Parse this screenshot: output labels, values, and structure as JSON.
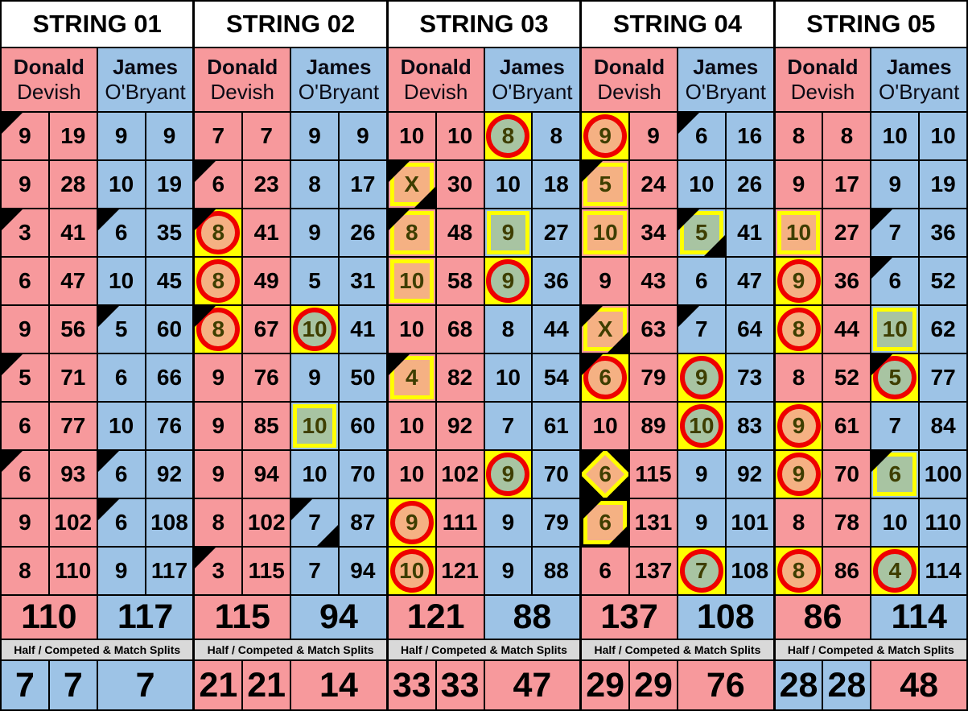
{
  "players": {
    "left": {
      "first": "Donald",
      "last": "Devish"
    },
    "right": {
      "first": "James",
      "last": "O'Bryant"
    }
  },
  "splits_label": "Half / Competed & Match Splits",
  "colors": {
    "pink": "#F7999C",
    "blue": "#9DC3E6",
    "orange": "#F5B183",
    "green": "#A8C4A2",
    "yellow": "#FFFF00",
    "ring_red": "#EE0000",
    "marker_text": "#3E3E00",
    "label_bg": "#D9D9D9"
  },
  "strings": [
    {
      "title": "STRING 01",
      "left_frames": [
        {
          "v": "9",
          "t": "19",
          "tl": true
        },
        {
          "v": "9",
          "t": "28"
        },
        {
          "v": "3",
          "t": "41",
          "tl": true
        },
        {
          "v": "6",
          "t": "47"
        },
        {
          "v": "9",
          "t": "56"
        },
        {
          "v": "5",
          "t": "71",
          "tl": true
        },
        {
          "v": "6",
          "t": "77"
        },
        {
          "v": "6",
          "t": "93",
          "tl": true
        },
        {
          "v": "9",
          "t": "102"
        },
        {
          "v": "8",
          "t": "110"
        }
      ],
      "right_frames": [
        {
          "v": "9",
          "t": "9"
        },
        {
          "v": "10",
          "t": "19"
        },
        {
          "v": "6",
          "t": "35",
          "tl": true
        },
        {
          "v": "10",
          "t": "45"
        },
        {
          "v": "5",
          "t": "60",
          "tl": true
        },
        {
          "v": "6",
          "t": "66"
        },
        {
          "v": "10",
          "t": "76"
        },
        {
          "v": "6",
          "t": "92",
          "tl": true
        },
        {
          "v": "6",
          "t": "108",
          "tl": true
        },
        {
          "v": "9",
          "t": "117"
        }
      ],
      "left_total": "110",
      "right_total": "117",
      "splits": [
        {
          "v": "7",
          "bg": "blue"
        },
        {
          "v": "7",
          "bg": "blue"
        },
        {
          "v": "7",
          "bg": "blue"
        }
      ]
    },
    {
      "title": "STRING 02",
      "left_frames": [
        {
          "v": "7",
          "t": "7"
        },
        {
          "v": "6",
          "t": "23",
          "tl": true
        },
        {
          "v": "8",
          "t": "41",
          "tl": true,
          "m": "ci"
        },
        {
          "v": "8",
          "t": "49",
          "m": "ci"
        },
        {
          "v": "8",
          "t": "67",
          "tl": true,
          "m": "ci"
        },
        {
          "v": "9",
          "t": "76"
        },
        {
          "v": "9",
          "t": "85"
        },
        {
          "v": "9",
          "t": "94"
        },
        {
          "v": "8",
          "t": "102"
        },
        {
          "v": "3",
          "t": "115",
          "tl": true
        }
      ],
      "right_frames": [
        {
          "v": "9",
          "t": "9"
        },
        {
          "v": "8",
          "t": "17"
        },
        {
          "v": "9",
          "t": "26"
        },
        {
          "v": "5",
          "t": "31"
        },
        {
          "v": "10",
          "t": "41",
          "m": "ci"
        },
        {
          "v": "9",
          "t": "50"
        },
        {
          "v": "10",
          "t": "60",
          "m": "sq"
        },
        {
          "v": "10",
          "t": "70"
        },
        {
          "v": "7",
          "t": "87",
          "tl": true,
          "br": true
        },
        {
          "v": "7",
          "t": "94"
        }
      ],
      "left_total": "115",
      "right_total": "94",
      "splits": [
        {
          "v": "21",
          "bg": "pink"
        },
        {
          "v": "21",
          "bg": "pink"
        },
        {
          "v": "14",
          "bg": "pink"
        }
      ]
    },
    {
      "title": "STRING 03",
      "left_frames": [
        {
          "v": "10",
          "t": "10"
        },
        {
          "v": "X",
          "t": "30",
          "tl": true,
          "br": true,
          "m": "sq"
        },
        {
          "v": "8",
          "t": "48",
          "tl": true,
          "m": "sq"
        },
        {
          "v": "10",
          "t": "58",
          "m": "sq"
        },
        {
          "v": "10",
          "t": "68"
        },
        {
          "v": "4",
          "t": "82",
          "tl": true,
          "m": "sq"
        },
        {
          "v": "10",
          "t": "92"
        },
        {
          "v": "10",
          "t": "102"
        },
        {
          "v": "9",
          "t": "111",
          "m": "ci"
        },
        {
          "v": "10",
          "t": "121",
          "m": "ci"
        }
      ],
      "right_frames": [
        {
          "v": "8",
          "t": "8",
          "m": "ci"
        },
        {
          "v": "10",
          "t": "18"
        },
        {
          "v": "9",
          "t": "27",
          "m": "sq"
        },
        {
          "v": "9",
          "t": "36",
          "m": "ci"
        },
        {
          "v": "8",
          "t": "44"
        },
        {
          "v": "10",
          "t": "54"
        },
        {
          "v": "7",
          "t": "61"
        },
        {
          "v": "9",
          "t": "70",
          "m": "ci"
        },
        {
          "v": "9",
          "t": "79"
        },
        {
          "v": "9",
          "t": "88"
        }
      ],
      "left_total": "121",
      "right_total": "88",
      "splits": [
        {
          "v": "33",
          "bg": "pink"
        },
        {
          "v": "33",
          "bg": "pink"
        },
        {
          "v": "47",
          "bg": "pink"
        }
      ]
    },
    {
      "title": "STRING 04",
      "left_frames": [
        {
          "v": "9",
          "t": "9",
          "m": "ci"
        },
        {
          "v": "5",
          "t": "24",
          "tl": true,
          "m": "sq"
        },
        {
          "v": "10",
          "t": "34",
          "m": "sq"
        },
        {
          "v": "9",
          "t": "43"
        },
        {
          "v": "X",
          "t": "63",
          "tl": true,
          "br": true,
          "m": "sq"
        },
        {
          "v": "6",
          "t": "79",
          "tl": true,
          "m": "ci"
        },
        {
          "v": "10",
          "t": "89"
        },
        {
          "v": "6",
          "t": "115",
          "m": "di",
          "bb": true
        },
        {
          "v": "6",
          "t": "131",
          "m": "sq",
          "tl": true,
          "br": true,
          "bb": true
        },
        {
          "v": "6",
          "t": "137"
        }
      ],
      "right_frames": [
        {
          "v": "6",
          "t": "16",
          "tl": true
        },
        {
          "v": "10",
          "t": "26"
        },
        {
          "v": "5",
          "t": "41",
          "tl": true,
          "br": true,
          "m": "sq"
        },
        {
          "v": "6",
          "t": "47"
        },
        {
          "v": "7",
          "t": "64",
          "tl": true
        },
        {
          "v": "9",
          "t": "73",
          "m": "ci"
        },
        {
          "v": "10",
          "t": "83",
          "m": "ci"
        },
        {
          "v": "9",
          "t": "92"
        },
        {
          "v": "9",
          "t": "101"
        },
        {
          "v": "7",
          "t": "108",
          "m": "ci"
        }
      ],
      "left_total": "137",
      "right_total": "108",
      "splits": [
        {
          "v": "29",
          "bg": "pink"
        },
        {
          "v": "29",
          "bg": "pink"
        },
        {
          "v": "76",
          "bg": "pink"
        }
      ]
    },
    {
      "title": "STRING 05",
      "left_frames": [
        {
          "v": "8",
          "t": "8"
        },
        {
          "v": "9",
          "t": "17"
        },
        {
          "v": "10",
          "t": "27",
          "m": "sq"
        },
        {
          "v": "9",
          "t": "36",
          "m": "ci"
        },
        {
          "v": "8",
          "t": "44",
          "m": "ci"
        },
        {
          "v": "8",
          "t": "52"
        },
        {
          "v": "9",
          "t": "61",
          "m": "ci"
        },
        {
          "v": "9",
          "t": "70",
          "m": "ci"
        },
        {
          "v": "8",
          "t": "78"
        },
        {
          "v": "8",
          "t": "86",
          "m": "ci"
        }
      ],
      "right_frames": [
        {
          "v": "10",
          "t": "10"
        },
        {
          "v": "9",
          "t": "19"
        },
        {
          "v": "7",
          "t": "36",
          "tl": true
        },
        {
          "v": "6",
          "t": "52",
          "tl": true
        },
        {
          "v": "10",
          "t": "62",
          "m": "sq"
        },
        {
          "v": "5",
          "t": "77",
          "tl": true,
          "m": "ci"
        },
        {
          "v": "7",
          "t": "84"
        },
        {
          "v": "6",
          "t": "100",
          "tl": true,
          "m": "sq"
        },
        {
          "v": "10",
          "t": "110"
        },
        {
          "v": "4",
          "t": "114",
          "m": "ci"
        }
      ],
      "left_total": "86",
      "right_total": "114",
      "splits": [
        {
          "v": "28",
          "bg": "blue"
        },
        {
          "v": "28",
          "bg": "blue"
        },
        {
          "v": "48",
          "bg": "pink"
        }
      ]
    }
  ]
}
